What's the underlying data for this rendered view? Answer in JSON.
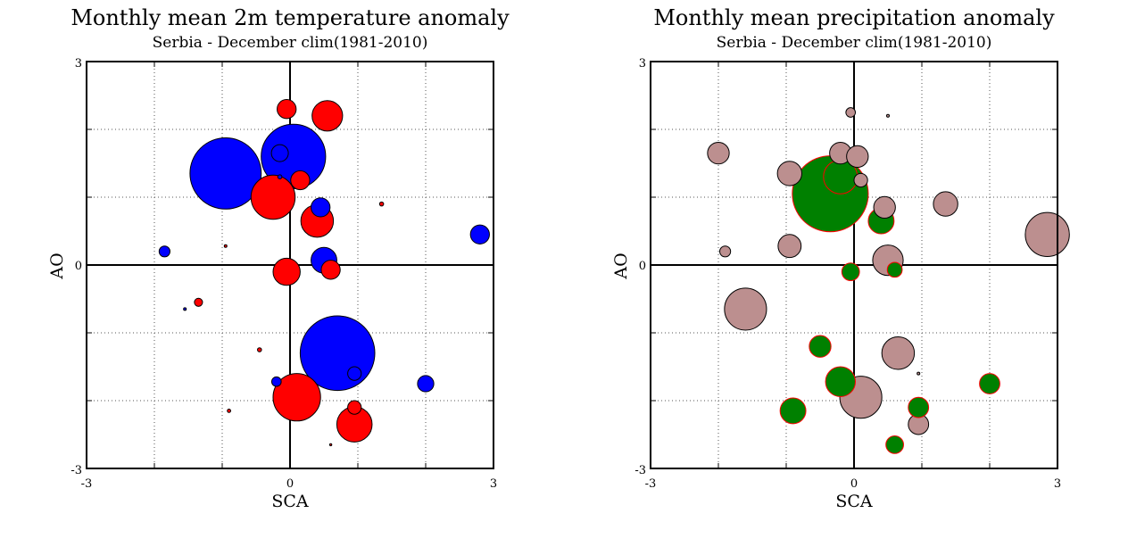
{
  "chart_data": [
    {
      "type": "scatter",
      "title": "Monthly mean 2m temperature anomaly",
      "subtitle": "Serbia - December  clim(1981-2010)",
      "xlabel": "SCA",
      "ylabel": "AO",
      "xlim": [
        -3,
        3
      ],
      "ylim": [
        -3,
        3
      ],
      "x_tick_labels": [
        "-3",
        "0",
        "3"
      ],
      "y_tick_labels": [
        "-3",
        "0",
        "3"
      ],
      "grid": true,
      "colors": {
        "positive": "#ff0000",
        "negative": "#0000ff",
        "outline": "#000000"
      },
      "points": [
        {
          "x": -0.95,
          "y": 1.35,
          "size": 1.05,
          "sign": "negative"
        },
        {
          "x": 0.05,
          "y": 1.6,
          "size": 0.95,
          "sign": "negative"
        },
        {
          "x": -0.15,
          "y": 1.65,
          "size": 0.25,
          "sign": "negative"
        },
        {
          "x": -0.15,
          "y": 1.3,
          "size": 0.06,
          "sign": "negative"
        },
        {
          "x": 0.45,
          "y": 0.85,
          "size": 0.28,
          "sign": "negative"
        },
        {
          "x": 0.5,
          "y": 0.07,
          "size": 0.38,
          "sign": "negative"
        },
        {
          "x": 0.7,
          "y": -1.3,
          "size": 1.1,
          "sign": "negative"
        },
        {
          "x": 0.95,
          "y": -1.6,
          "size": 0.2,
          "sign": "negative"
        },
        {
          "x": -0.2,
          "y": -1.72,
          "size": 0.14,
          "sign": "negative"
        },
        {
          "x": 2.0,
          "y": -1.75,
          "size": 0.24,
          "sign": "negative"
        },
        {
          "x": 2.8,
          "y": 0.45,
          "size": 0.28,
          "sign": "negative"
        },
        {
          "x": -1.85,
          "y": 0.2,
          "size": 0.16,
          "sign": "negative"
        },
        {
          "x": -1.55,
          "y": -0.65,
          "size": 0.04,
          "sign": "negative"
        },
        {
          "x": -0.05,
          "y": 2.3,
          "size": 0.28,
          "sign": "positive"
        },
        {
          "x": 0.55,
          "y": 2.2,
          "size": 0.45,
          "sign": "positive"
        },
        {
          "x": 0.15,
          "y": 1.25,
          "size": 0.28,
          "sign": "positive"
        },
        {
          "x": -0.25,
          "y": 1.0,
          "size": 0.65,
          "sign": "positive"
        },
        {
          "x": 0.4,
          "y": 0.65,
          "size": 0.48,
          "sign": "positive"
        },
        {
          "x": 1.35,
          "y": 0.9,
          "size": 0.06,
          "sign": "positive"
        },
        {
          "x": -0.95,
          "y": 0.28,
          "size": 0.04,
          "sign": "positive"
        },
        {
          "x": -0.05,
          "y": -0.1,
          "size": 0.4,
          "sign": "positive"
        },
        {
          "x": 0.6,
          "y": -0.07,
          "size": 0.28,
          "sign": "positive"
        },
        {
          "x": -1.35,
          "y": -0.55,
          "size": 0.12,
          "sign": "positive"
        },
        {
          "x": -0.45,
          "y": -1.25,
          "size": 0.06,
          "sign": "positive"
        },
        {
          "x": 0.1,
          "y": -1.95,
          "size": 0.7,
          "sign": "positive"
        },
        {
          "x": -0.9,
          "y": -2.15,
          "size": 0.05,
          "sign": "positive"
        },
        {
          "x": 0.95,
          "y": -2.1,
          "size": 0.2,
          "sign": "positive"
        },
        {
          "x": 0.95,
          "y": -2.35,
          "size": 0.52,
          "sign": "positive"
        },
        {
          "x": 0.6,
          "y": -2.65,
          "size": 0.02,
          "sign": "positive"
        }
      ]
    },
    {
      "type": "scatter",
      "title": "Monthly mean precipitation anomaly",
      "subtitle": "Serbia - December  clim(1981-2010)",
      "xlabel": "SCA",
      "ylabel": "AO",
      "xlim": [
        -3,
        3
      ],
      "ylim": [
        -3,
        3
      ],
      "x_tick_labels": [
        "-3",
        "0",
        "3"
      ],
      "y_tick_labels": [
        "-3",
        "0",
        "3"
      ],
      "grid": true,
      "colors": {
        "positive": "#008000",
        "negative": "#bc8f8f",
        "positive_outline": "#ff0000",
        "negative_outline": "#000000"
      },
      "points": [
        {
          "x": -0.05,
          "y": 2.25,
          "size": 0.14,
          "sign": "negative"
        },
        {
          "x": 0.5,
          "y": 2.2,
          "size": 0.04,
          "sign": "negative"
        },
        {
          "x": -2.0,
          "y": 1.65,
          "size": 0.32,
          "sign": "negative"
        },
        {
          "x": -0.2,
          "y": 1.65,
          "size": 0.32,
          "sign": "negative"
        },
        {
          "x": 0.05,
          "y": 1.6,
          "size": 0.32,
          "sign": "negative"
        },
        {
          "x": -0.95,
          "y": 1.35,
          "size": 0.36,
          "sign": "negative"
        },
        {
          "x": 0.1,
          "y": 1.25,
          "size": 0.2,
          "sign": "negative"
        },
        {
          "x": 0.45,
          "y": 0.85,
          "size": 0.32,
          "sign": "negative"
        },
        {
          "x": 1.35,
          "y": 0.9,
          "size": 0.36,
          "sign": "negative"
        },
        {
          "x": 2.85,
          "y": 0.45,
          "size": 0.65,
          "sign": "negative"
        },
        {
          "x": -1.9,
          "y": 0.2,
          "size": 0.16,
          "sign": "negative"
        },
        {
          "x": -0.95,
          "y": 0.28,
          "size": 0.34,
          "sign": "negative"
        },
        {
          "x": 0.5,
          "y": 0.07,
          "size": 0.45,
          "sign": "negative"
        },
        {
          "x": -1.6,
          "y": -0.65,
          "size": 0.62,
          "sign": "negative"
        },
        {
          "x": 0.65,
          "y": -1.3,
          "size": 0.48,
          "sign": "negative"
        },
        {
          "x": 0.95,
          "y": -1.6,
          "size": 0.04,
          "sign": "negative"
        },
        {
          "x": 0.1,
          "y": -1.95,
          "size": 0.62,
          "sign": "negative"
        },
        {
          "x": 0.95,
          "y": -2.35,
          "size": 0.3,
          "sign": "negative"
        },
        {
          "x": -0.35,
          "y": 1.05,
          "size": 1.12,
          "sign": "positive"
        },
        {
          "x": -0.2,
          "y": 1.3,
          "size": 0.5,
          "sign": "positive"
        },
        {
          "x": 0.4,
          "y": 0.65,
          "size": 0.38,
          "sign": "positive"
        },
        {
          "x": -0.05,
          "y": -0.1,
          "size": 0.26,
          "sign": "positive"
        },
        {
          "x": 0.6,
          "y": -0.07,
          "size": 0.22,
          "sign": "positive"
        },
        {
          "x": -0.5,
          "y": -1.2,
          "size": 0.32,
          "sign": "positive"
        },
        {
          "x": -0.2,
          "y": -1.72,
          "size": 0.44,
          "sign": "positive"
        },
        {
          "x": 2.0,
          "y": -1.75,
          "size": 0.3,
          "sign": "positive"
        },
        {
          "x": -0.9,
          "y": -2.15,
          "size": 0.38,
          "sign": "positive"
        },
        {
          "x": 0.95,
          "y": -2.1,
          "size": 0.3,
          "sign": "positive"
        },
        {
          "x": 0.6,
          "y": -2.65,
          "size": 0.26,
          "sign": "positive"
        }
      ]
    }
  ]
}
